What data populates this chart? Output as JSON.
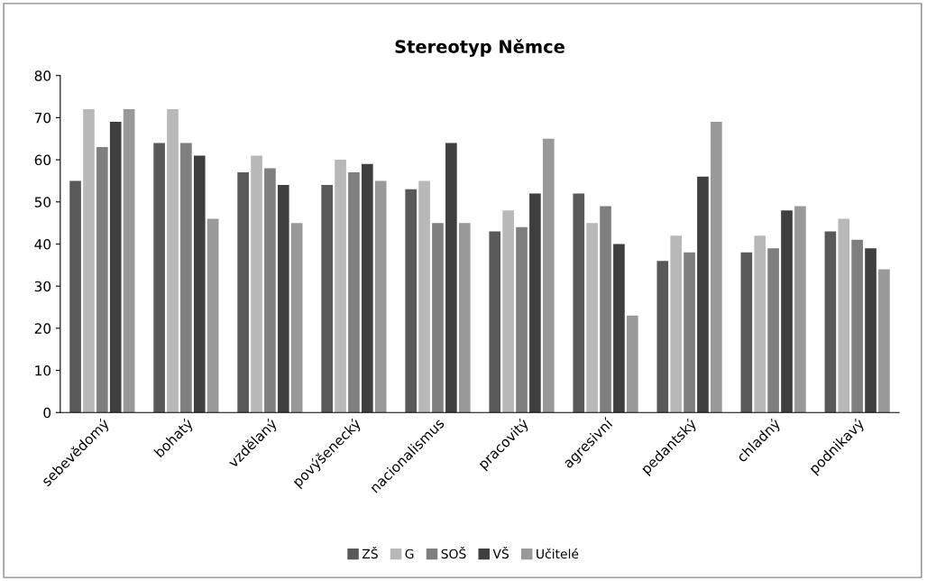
{
  "chart_data": {
    "type": "bar",
    "title": "Stereotyp Němce",
    "categories": [
      "sebevědomý",
      "bohatý",
      "vzdělaný",
      "povýšenecký",
      "nacionalismus",
      "pracovitý",
      "agresivní",
      "pedantský",
      "chladný",
      "podnikavý"
    ],
    "series": [
      {
        "name": "ZŠ",
        "color": "#595959",
        "values": [
          55,
          64,
          57,
          54,
          53,
          43,
          52,
          36,
          38,
          43
        ]
      },
      {
        "name": "G",
        "color": "#b8b8b8",
        "values": [
          72,
          72,
          61,
          60,
          55,
          48,
          45,
          42,
          42,
          46
        ]
      },
      {
        "name": "SOŠ",
        "color": "#7f7f7f",
        "values": [
          63,
          64,
          58,
          57,
          45,
          44,
          49,
          38,
          39,
          41
        ]
      },
      {
        "name": "VŠ",
        "color": "#3f3f3f",
        "values": [
          69,
          61,
          54,
          59,
          64,
          52,
          40,
          56,
          48,
          39
        ]
      },
      {
        "name": "Učitelé",
        "color": "#999999",
        "values": [
          72,
          46,
          45,
          55,
          45,
          65,
          23,
          69,
          49,
          34
        ]
      }
    ],
    "ylim": [
      0,
      80
    ],
    "yticks": [
      0,
      10,
      20,
      30,
      40,
      50,
      60,
      70,
      80
    ],
    "grid": false,
    "legend": "bottom"
  }
}
